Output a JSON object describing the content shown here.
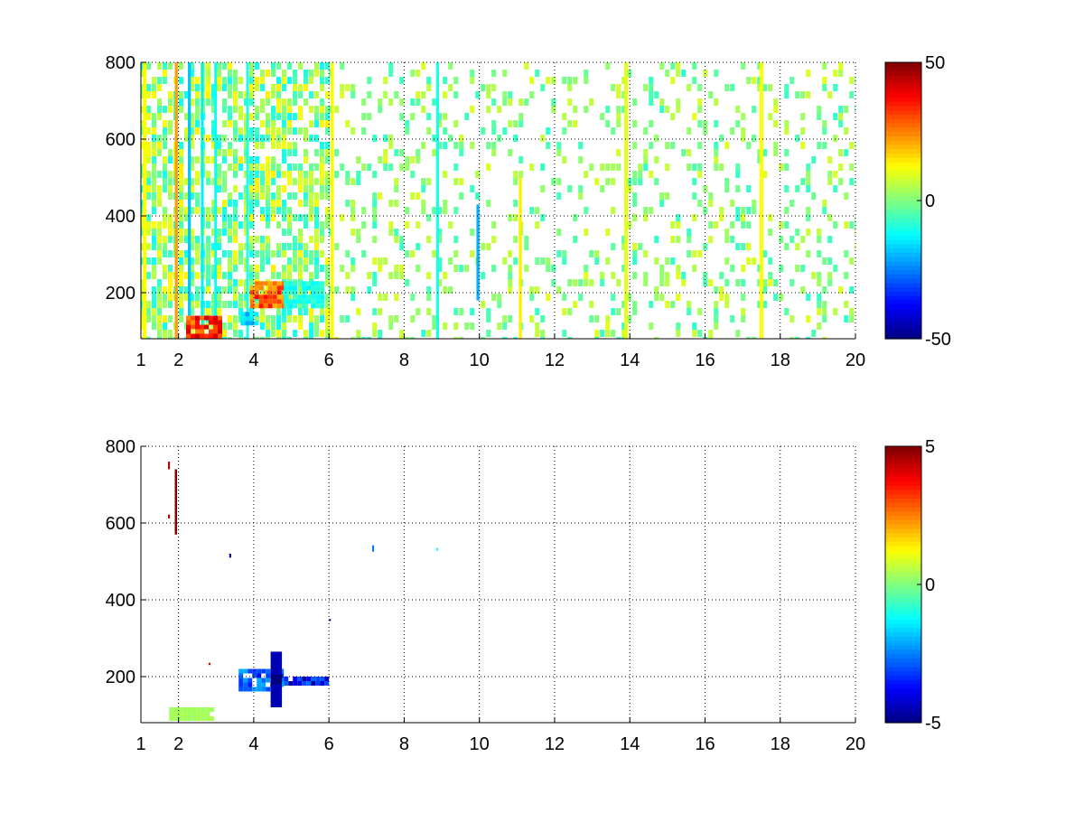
{
  "chart_data": [
    {
      "type": "heatmap",
      "title": "",
      "xlabel": "",
      "ylabel": "",
      "xlim": [
        1,
        20
      ],
      "ylim": [
        80,
        800
      ],
      "xticks": [
        1,
        2,
        4,
        6,
        8,
        10,
        12,
        14,
        16,
        18,
        20
      ],
      "yticks": [
        200,
        400,
        600,
        800
      ],
      "grid": true,
      "colorbar": {
        "ticks": [
          -50,
          0,
          50
        ],
        "range": [
          -50,
          50
        ],
        "colormap": "jet"
      },
      "features": [
        {
          "kind": "speckle",
          "x": [
            1.0,
            6.0
          ],
          "y": [
            80,
            800
          ],
          "density": 0.65,
          "value_range": [
            -12,
            14
          ]
        },
        {
          "kind": "speckle",
          "x": [
            6.0,
            20.0
          ],
          "y": [
            80,
            800
          ],
          "density": 0.22,
          "value_range": [
            -8,
            10
          ]
        },
        {
          "kind": "column",
          "x": [
            1.05,
            1.15
          ],
          "y": [
            80,
            800
          ],
          "value": 12
        },
        {
          "kind": "column",
          "x": [
            1.9,
            1.98
          ],
          "y": [
            80,
            800
          ],
          "value": 22
        },
        {
          "kind": "column",
          "x": [
            2.25,
            2.33
          ],
          "y": [
            80,
            800
          ],
          "value": -18
        },
        {
          "kind": "column",
          "x": [
            2.6,
            2.67
          ],
          "y": [
            80,
            800
          ],
          "value": -14
        },
        {
          "kind": "column",
          "x": [
            2.95,
            3.02
          ],
          "y": [
            80,
            800
          ],
          "value": -12
        },
        {
          "kind": "column",
          "x": [
            3.8,
            3.87
          ],
          "y": [
            80,
            800
          ],
          "value": -10
        },
        {
          "kind": "column",
          "x": [
            6.05,
            6.13
          ],
          "y": [
            80,
            800
          ],
          "value": 13
        },
        {
          "kind": "column",
          "x": [
            8.85,
            8.93
          ],
          "y": [
            80,
            800
          ],
          "value": -10
        },
        {
          "kind": "column",
          "x": [
            9.92,
            10.0
          ],
          "y": [
            180,
            430
          ],
          "value": -20
        },
        {
          "kind": "column",
          "x": [
            11.05,
            11.13
          ],
          "y": [
            80,
            500
          ],
          "value": 14
        },
        {
          "kind": "column",
          "x": [
            13.85,
            13.95
          ],
          "y": [
            80,
            800
          ],
          "value": 10
        },
        {
          "kind": "column",
          "x": [
            17.45,
            17.55
          ],
          "y": [
            80,
            800
          ],
          "value": 12
        },
        {
          "kind": "blob",
          "x": [
            2.2,
            3.1
          ],
          "y": [
            90,
            140
          ],
          "value": 38
        },
        {
          "kind": "blob",
          "x": [
            3.65,
            4.1
          ],
          "y": [
            120,
            150
          ],
          "value": -20
        },
        {
          "kind": "blob",
          "x": [
            3.9,
            4.8
          ],
          "y": [
            160,
            230
          ],
          "value": 32
        },
        {
          "kind": "blob",
          "x": [
            4.8,
            5.8
          ],
          "y": [
            170,
            230
          ],
          "value": -12
        }
      ]
    },
    {
      "type": "heatmap",
      "title": "",
      "xlabel": "",
      "ylabel": "",
      "xlim": [
        1,
        20
      ],
      "ylim": [
        80,
        800
      ],
      "xticks": [
        1,
        2,
        4,
        6,
        8,
        10,
        12,
        14,
        16,
        18,
        20
      ],
      "yticks": [
        200,
        400,
        600,
        800
      ],
      "grid": true,
      "colorbar": {
        "ticks": [
          -5,
          0,
          5
        ],
        "range": [
          -5,
          5
        ],
        "colormap": "jet"
      },
      "features": [
        {
          "kind": "column",
          "x": [
            1.9,
            1.96
          ],
          "y": [
            570,
            740
          ],
          "value": 5
        },
        {
          "kind": "point",
          "x": [
            1.72,
            1.77
          ],
          "y": [
            740,
            760
          ],
          "value": 4.5
        },
        {
          "kind": "point",
          "x": [
            1.72,
            1.77
          ],
          "y": [
            612,
            622
          ],
          "value": 4.5
        },
        {
          "kind": "point",
          "x": [
            3.35,
            3.4
          ],
          "y": [
            510,
            520
          ],
          "value": -5
        },
        {
          "kind": "point",
          "x": [
            7.15,
            7.2
          ],
          "y": [
            525,
            542
          ],
          "value": -2.5
        },
        {
          "kind": "point",
          "x": [
            8.85,
            8.9
          ],
          "y": [
            528,
            535
          ],
          "value": -1.2
        },
        {
          "kind": "point",
          "x": [
            6.0,
            6.05
          ],
          "y": [
            345,
            350
          ],
          "value": -5
        },
        {
          "kind": "point",
          "x": [
            2.8,
            2.85
          ],
          "y": [
            230,
            236
          ],
          "value": 4
        },
        {
          "kind": "blob",
          "x": [
            1.75,
            2.95
          ],
          "y": [
            90,
            120
          ],
          "value": 0.4
        },
        {
          "kind": "blob",
          "x": [
            3.6,
            4.8
          ],
          "y": [
            170,
            220
          ],
          "value": -3.2
        },
        {
          "kind": "blob",
          "x": [
            4.8,
            5.9
          ],
          "y": [
            180,
            200
          ],
          "value": -4.2
        },
        {
          "kind": "column",
          "x": [
            4.45,
            4.75
          ],
          "y": [
            120,
            265
          ],
          "value": -4.5
        },
        {
          "kind": "point",
          "x": [
            4.45,
            4.75
          ],
          "y": [
            180,
            205
          ],
          "value": -5
        }
      ]
    }
  ]
}
